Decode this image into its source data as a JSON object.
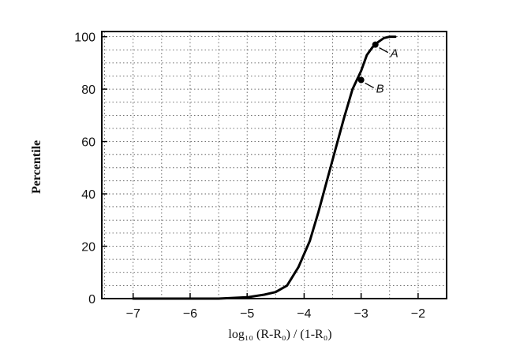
{
  "chart_data": {
    "type": "line",
    "xlabel": "log₁₀ (R-R₀) / (1-R₀)",
    "ylabel": "Percentile",
    "xlim": [
      -7.55,
      -1.5
    ],
    "ylim": [
      0,
      102
    ],
    "grid": true,
    "x_ticks": [
      -7,
      -6,
      -5,
      -4,
      -3,
      -2
    ],
    "x_tick_labels": [
      "−7",
      "−6",
      "−5",
      "−4",
      "−3",
      "−2"
    ],
    "y_ticks": [
      0,
      20,
      40,
      60,
      80,
      100
    ],
    "y_tick_labels": [
      "0",
      "20",
      "40",
      "60",
      "80",
      "100"
    ],
    "series": [
      {
        "x": [
          -7.0,
          -6.5,
          -6.0,
          -5.5,
          -5.0,
          -4.7,
          -4.5,
          -4.3,
          -4.1,
          -3.9,
          -3.75,
          -3.6,
          -3.45,
          -3.3,
          -3.15,
          -3.0,
          -2.9,
          -2.8,
          -2.7,
          -2.6,
          -2.5,
          -2.4
        ],
        "y": [
          0,
          0,
          0,
          0,
          0.5,
          1.5,
          2.5,
          5,
          12,
          22,
          33,
          45,
          57,
          69,
          80,
          87,
          93,
          96,
          98,
          99.5,
          100,
          100
        ]
      }
    ],
    "annotations": [
      {
        "label": "A",
        "x": -2.75,
        "y": 97
      },
      {
        "label": "B",
        "x": -3.0,
        "y": 83.5
      }
    ]
  }
}
